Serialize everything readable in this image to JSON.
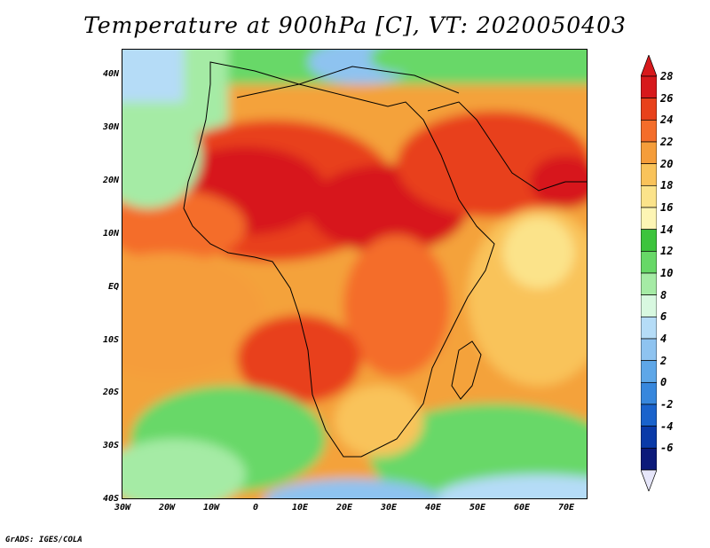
{
  "title": "Temperature at 900hPa [C], VT: 2020050403",
  "credit": "GrADS: IGES/COLA",
  "map": {
    "lat_labels": [
      "40N",
      "30N",
      "20N",
      "10N",
      "EQ",
      "10S",
      "20S",
      "30S",
      "40S"
    ],
    "lon_labels": [
      "30W",
      "20W",
      "10W",
      "0",
      "10E",
      "20E",
      "30E",
      "40E",
      "50E",
      "60E",
      "70E"
    ],
    "extent": {
      "lon": [
        -30,
        75
      ],
      "lat": [
        -40,
        45
      ]
    }
  },
  "colorbar": {
    "labels": [
      "28",
      "26",
      "24",
      "22",
      "20",
      "18",
      "16",
      "14",
      "12",
      "10",
      "8",
      "6",
      "4",
      "2",
      "0",
      "-2",
      "-4",
      "-6"
    ],
    "colors": [
      "#d7191c",
      "#e8411b",
      "#f46d2a",
      "#f59d3a",
      "#f9c35a",
      "#fbe38a",
      "#fdf5b4",
      "#3cc43c",
      "#67d867",
      "#a5eba5",
      "#d8f8e0",
      "#b5dcf7",
      "#8ec3f0",
      "#5ea7e8",
      "#3787dd",
      "#1a63cc",
      "#0a3aa8",
      "#0c1a7a"
    ]
  }
}
